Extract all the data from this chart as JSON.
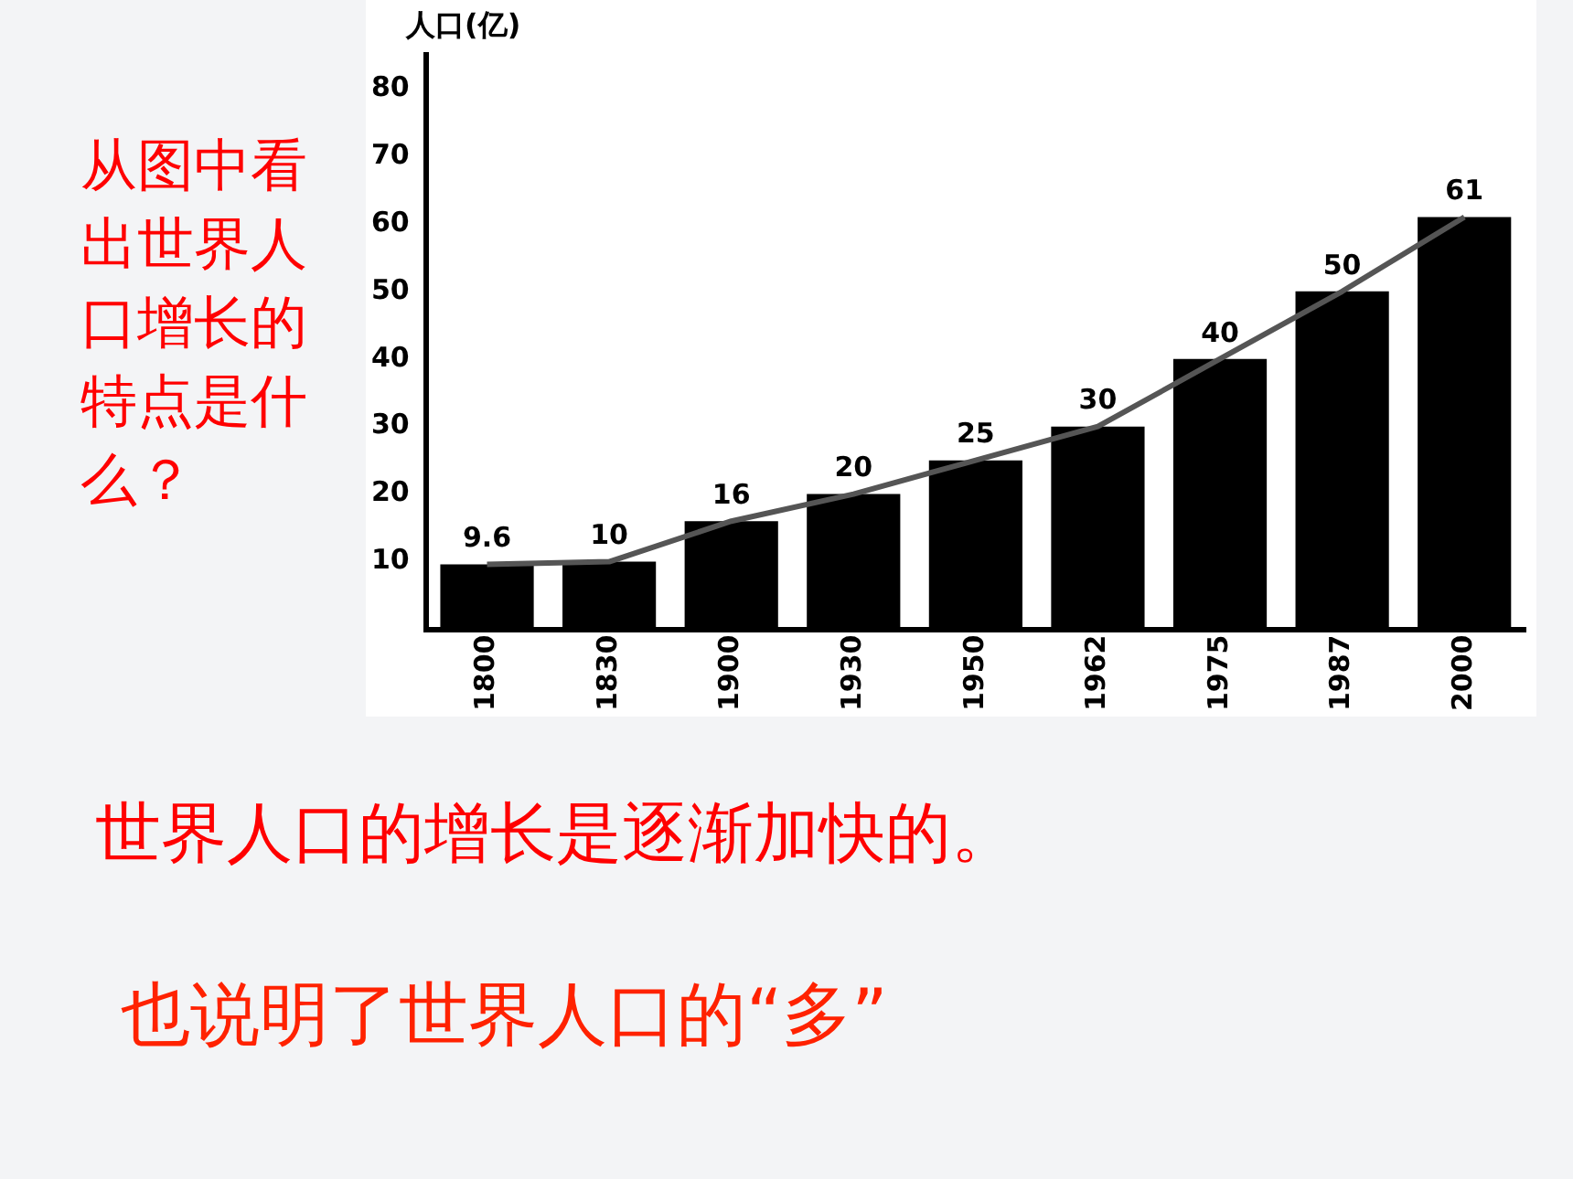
{
  "chart_data": {
    "type": "bar",
    "ylabel": "人口(亿)",
    "categories": [
      "1800",
      "1830",
      "1900",
      "1930",
      "1950",
      "1962",
      "1975",
      "1987",
      "2000"
    ],
    "series": [
      {
        "color": "#000000",
        "values": [
          9.6,
          10,
          16,
          20,
          25,
          30,
          40,
          50,
          61
        ],
        "value_labels": [
          "9.6",
          "10",
          "16",
          "20",
          "25",
          "30",
          "40",
          "50",
          "61"
        ]
      },
      {
        "type": "line",
        "color": "#555555",
        "values": [
          9.6,
          10,
          16,
          20,
          25,
          30,
          40,
          50,
          61
        ]
      }
    ],
    "ylim": [
      0,
      85
    ],
    "yticks": [
      10,
      20,
      30,
      40,
      50,
      60,
      70,
      80
    ],
    "grid": false,
    "legend": false,
    "marker": "none",
    "annotations": [
      "从图中看出世界人口增长的特点是什么？",
      "世界人口的增长是逐渐加快的。",
      "也说明了世界人口的“多”"
    ]
  }
}
